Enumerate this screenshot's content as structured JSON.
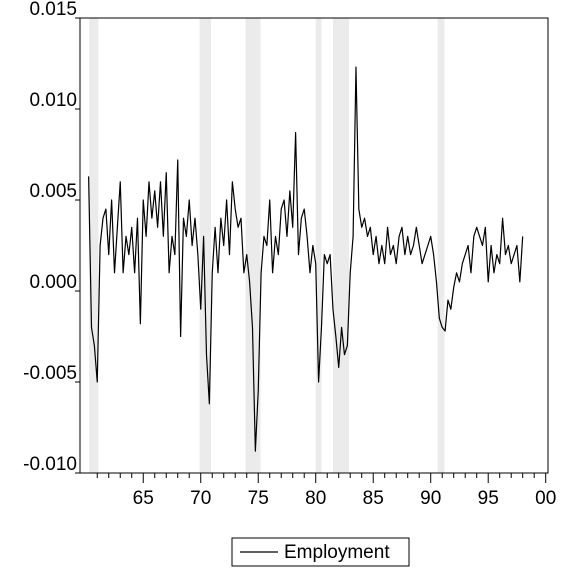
{
  "chart_data": {
    "type": "line",
    "x": [
      1960.25,
      1960.5,
      1960.75,
      1961,
      1961.25,
      1961.5,
      1961.75,
      1962,
      1962.25,
      1962.5,
      1962.75,
      1963,
      1963.25,
      1963.5,
      1963.75,
      1964,
      1964.25,
      1964.5,
      1964.75,
      1965,
      1965.25,
      1965.5,
      1965.75,
      1966,
      1966.25,
      1966.5,
      1966.75,
      1967,
      1967.25,
      1967.5,
      1967.75,
      1968,
      1968.25,
      1968.5,
      1968.75,
      1969,
      1969.25,
      1969.5,
      1969.75,
      1970,
      1970.25,
      1970.5,
      1970.75,
      1971,
      1971.25,
      1971.5,
      1971.75,
      1972,
      1972.25,
      1972.5,
      1972.75,
      1973,
      1973.25,
      1973.5,
      1973.75,
      1974,
      1974.25,
      1974.5,
      1974.75,
      1975,
      1975.25,
      1975.5,
      1975.75,
      1976,
      1976.25,
      1976.5,
      1976.75,
      1977,
      1977.25,
      1977.5,
      1977.75,
      1978,
      1978.25,
      1978.5,
      1978.75,
      1979,
      1979.25,
      1979.5,
      1979.75,
      1980,
      1980.25,
      1980.5,
      1980.75,
      1981,
      1981.25,
      1981.5,
      1981.75,
      1982,
      1982.25,
      1982.5,
      1982.75,
      1983,
      1983.25,
      1983.5,
      1983.75,
      1984,
      1984.25,
      1984.5,
      1984.75,
      1985,
      1985.25,
      1985.5,
      1985.75,
      1986,
      1986.25,
      1986.5,
      1986.75,
      1987,
      1987.25,
      1987.5,
      1987.75,
      1988,
      1988.25,
      1988.5,
      1988.75,
      1989,
      1989.25,
      1989.5,
      1989.75,
      1990,
      1990.25,
      1990.5,
      1990.75,
      1991,
      1991.25,
      1991.5,
      1991.75,
      1992,
      1992.25,
      1992.5,
      1992.75,
      1993,
      1993.25,
      1993.5,
      1993.75,
      1994,
      1994.25,
      1994.5,
      1994.75,
      1995,
      1995.25,
      1995.5,
      1995.75,
      1996,
      1996.25,
      1996.5,
      1996.75,
      1997,
      1997.25,
      1997.5,
      1997.75,
      1998
    ],
    "series": [
      {
        "name": "Employment",
        "color": "#000000",
        "values": [
          0.0063,
          -0.002,
          -0.003,
          -0.005,
          0.0025,
          0.004,
          0.0045,
          0.002,
          0.005,
          0.001,
          0.0035,
          0.006,
          0.001,
          0.003,
          0.002,
          0.0035,
          0.001,
          0.004,
          -0.0018,
          0.005,
          0.003,
          0.006,
          0.004,
          0.0055,
          0.0035,
          0.006,
          0.003,
          0.0065,
          0.001,
          0.003,
          0.002,
          0.0072,
          -0.0025,
          0.004,
          0.003,
          0.005,
          0.0025,
          0.004,
          0.002,
          -0.001,
          0.003,
          -0.0035,
          -0.0062,
          0.001,
          0.0035,
          0.001,
          0.004,
          0.0025,
          0.005,
          0.002,
          0.006,
          0.0045,
          0.0035,
          0.004,
          0.001,
          0.002,
          0.0005,
          -0.002,
          -0.0088,
          -0.0055,
          0.001,
          0.003,
          0.0025,
          0.005,
          0.001,
          0.003,
          0.002,
          0.0045,
          0.005,
          0.003,
          0.0055,
          0.0035,
          0.0087,
          0.002,
          0.004,
          0.0045,
          0.003,
          0.001,
          0.0025,
          0.0015,
          -0.005,
          -0.002,
          0.002,
          0.0015,
          0.002,
          -0.001,
          -0.0025,
          -0.0042,
          -0.002,
          -0.0035,
          -0.003,
          0.001,
          0.003,
          0.0123,
          0.0045,
          0.0035,
          0.004,
          0.003,
          0.0035,
          0.002,
          0.003,
          0.0015,
          0.0025,
          0.0015,
          0.0035,
          0.002,
          0.0025,
          0.0015,
          0.003,
          0.0035,
          0.002,
          0.003,
          0.002,
          0.0025,
          0.0035,
          0.0025,
          0.0015,
          0.002,
          0.0025,
          0.003,
          0.002,
          0.0005,
          -0.0015,
          -0.002,
          -0.0022,
          -0.0005,
          -0.001,
          0.0002,
          0.001,
          0.0005,
          0.0015,
          0.002,
          0.0025,
          0.001,
          0.003,
          0.0035,
          0.003,
          0.0025,
          0.0035,
          0.0005,
          0.0025,
          0.001,
          0.002,
          0.0015,
          0.004,
          0.002,
          0.0025,
          0.0015,
          0.002,
          0.0025,
          0.0005,
          0.003
        ]
      }
    ],
    "xlim": [
      1959.5,
      2000.2
    ],
    "ylim": [
      -0.01,
      0.015
    ],
    "xticks": [
      {
        "value": 1965,
        "label": "65"
      },
      {
        "value": 1970,
        "label": "70"
      },
      {
        "value": 1975,
        "label": "75"
      },
      {
        "value": 1980,
        "label": "80"
      },
      {
        "value": 1985,
        "label": "85"
      },
      {
        "value": 1990,
        "label": "90"
      },
      {
        "value": 1995,
        "label": "95"
      },
      {
        "value": 2000,
        "label": "00"
      }
    ],
    "xminorticks": [
      1961,
      1962,
      1963,
      1964,
      1966,
      1967,
      1968,
      1969,
      1971,
      1972,
      1973,
      1974,
      1976,
      1977,
      1978,
      1979,
      1981,
      1982,
      1983,
      1984,
      1986,
      1987,
      1988,
      1989,
      1991,
      1992,
      1993,
      1994,
      1996,
      1997,
      1998,
      1999
    ],
    "yticks": [
      {
        "value": -0.01,
        "label": "-0.010"
      },
      {
        "value": -0.005,
        "label": "-0.005"
      },
      {
        "value": 0,
        "label": "0.000"
      },
      {
        "value": 0.005,
        "label": "0.005"
      },
      {
        "value": 0.01,
        "label": "0.010"
      },
      {
        "value": 0.015,
        "label": "0.015"
      }
    ],
    "shaded_periods": [
      [
        1960.3,
        1961.1
      ],
      [
        1969.9,
        1970.9
      ],
      [
        1973.9,
        1975.2
      ],
      [
        1980.0,
        1980.5
      ],
      [
        1981.5,
        1982.9
      ],
      [
        1990.6,
        1991.2
      ]
    ],
    "shade_color": "#ebebeb",
    "grid": false
  }
}
